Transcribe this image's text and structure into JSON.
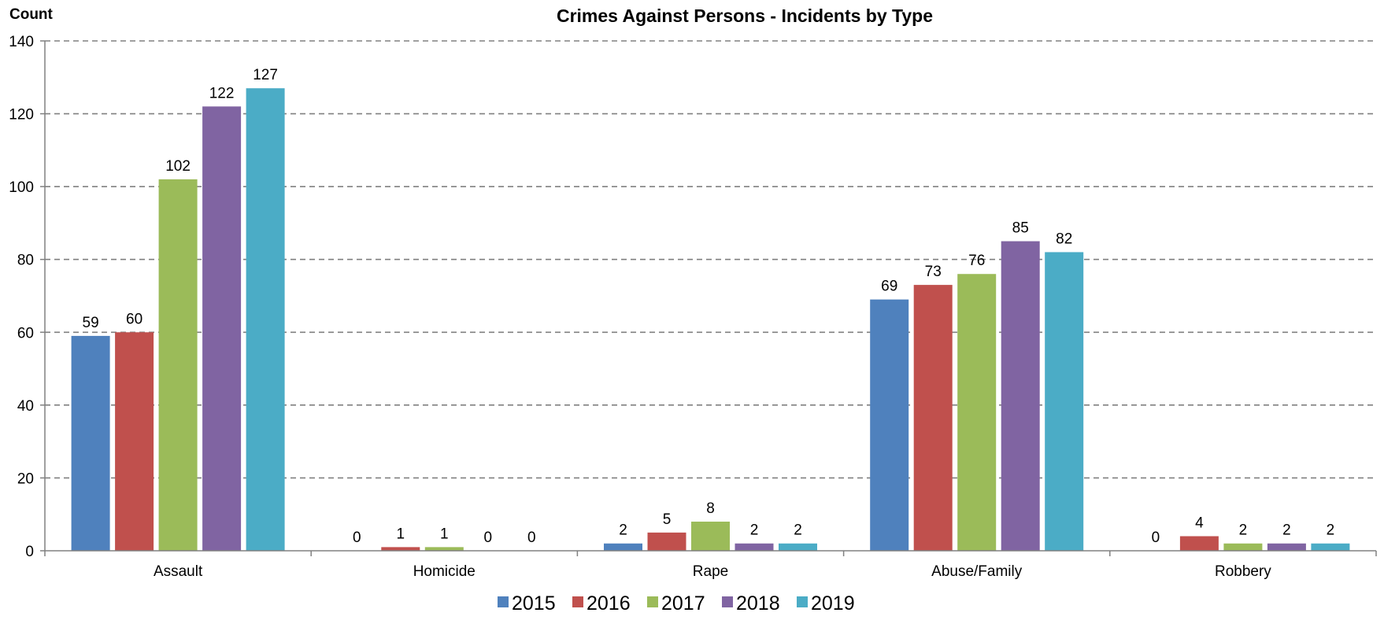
{
  "chart_data": {
    "type": "bar",
    "title": "Crimes Against Persons - Incidents by Type",
    "ylabel": "Count",
    "xlabel": "",
    "ylim": [
      0,
      140
    ],
    "yticks": [
      0,
      20,
      40,
      60,
      80,
      100,
      120,
      140
    ],
    "grid": true,
    "legend_position": "bottom",
    "categories": [
      "Assault",
      "Homicide",
      "Rape",
      "Abuse/Family",
      "Robbery"
    ],
    "series": [
      {
        "name": "2015",
        "color": "#4F81BD",
        "values": [
          59,
          0,
          2,
          69,
          0
        ]
      },
      {
        "name": "2016",
        "color": "#C0504D",
        "values": [
          60,
          1,
          5,
          73,
          4
        ]
      },
      {
        "name": "2017",
        "color": "#9BBB59",
        "values": [
          102,
          1,
          8,
          76,
          2
        ]
      },
      {
        "name": "2018",
        "color": "#8064A2",
        "values": [
          122,
          0,
          2,
          85,
          2
        ]
      },
      {
        "name": "2019",
        "color": "#4BACC6",
        "values": [
          127,
          0,
          2,
          82,
          2
        ]
      }
    ]
  }
}
